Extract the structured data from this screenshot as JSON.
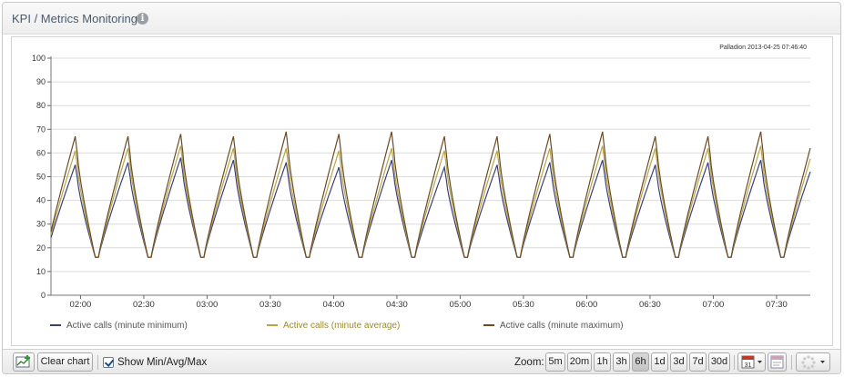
{
  "header": {
    "title": "KPI / Metrics Monitoring",
    "info_icon": "i"
  },
  "chart_data": {
    "type": "line",
    "watermark": "Palladion 2013-04-25 07:46:40",
    "ylim": [
      0,
      100
    ],
    "yticks": [
      0,
      10,
      20,
      30,
      40,
      50,
      60,
      70,
      80,
      90,
      100
    ],
    "xticks": [
      "02:00",
      "02:30",
      "03:00",
      "03:30",
      "04:00",
      "04:30",
      "05:00",
      "05:30",
      "06:00",
      "06:30",
      "07:00",
      "07:30"
    ],
    "xlim": [
      "01:46",
      "07:46"
    ],
    "grid": true,
    "legend_position": "bottom",
    "cycle_minutes": 25,
    "series": [
      {
        "name": "Active calls (minute minimum)",
        "color": "#3b3f78",
        "peak_values": [
          55,
          56,
          58,
          57,
          56,
          54,
          57,
          54,
          55,
          56,
          57,
          55,
          56,
          57,
          56
        ],
        "trough_values": [
          16,
          16,
          16,
          16,
          16,
          16,
          16,
          16,
          16,
          16,
          16,
          16,
          16,
          16,
          16
        ]
      },
      {
        "name": "Active calls (minute average)",
        "color": "#b5a64a",
        "peak_values": [
          61,
          62,
          63,
          62,
          62,
          61,
          62,
          61,
          61,
          62,
          63,
          62,
          62,
          63,
          62
        ],
        "trough_values": [
          16,
          16,
          16,
          16,
          16,
          16,
          16,
          16,
          16,
          16,
          16,
          16,
          16,
          16,
          16
        ]
      },
      {
        "name": "Active calls (minute maximum)",
        "color": "#6b4a22",
        "peak_values": [
          67,
          67,
          68,
          67,
          69,
          68,
          69,
          67,
          67,
          68,
          69,
          67,
          67,
          69,
          67
        ],
        "trough_values": [
          16,
          16,
          16,
          16,
          16,
          16,
          16,
          16,
          16,
          16,
          16,
          16,
          16,
          16,
          16
        ]
      }
    ]
  },
  "toolbar": {
    "clear_chart_label": "Clear chart",
    "show_minavgmax_label": "Show Min/Avg/Max",
    "show_minavgmax_checked": true,
    "zoom_label": "Zoom:",
    "zoom_options": [
      "5m",
      "20m",
      "1h",
      "3h",
      "6h",
      "1d",
      "3d",
      "7d",
      "30d"
    ],
    "zoom_selected": "6h",
    "calendar_day": "31",
    "calendar_icon": "calendar-icon",
    "export_icon": "export-chart-icon",
    "spinner_icon": "spinner-icon"
  }
}
